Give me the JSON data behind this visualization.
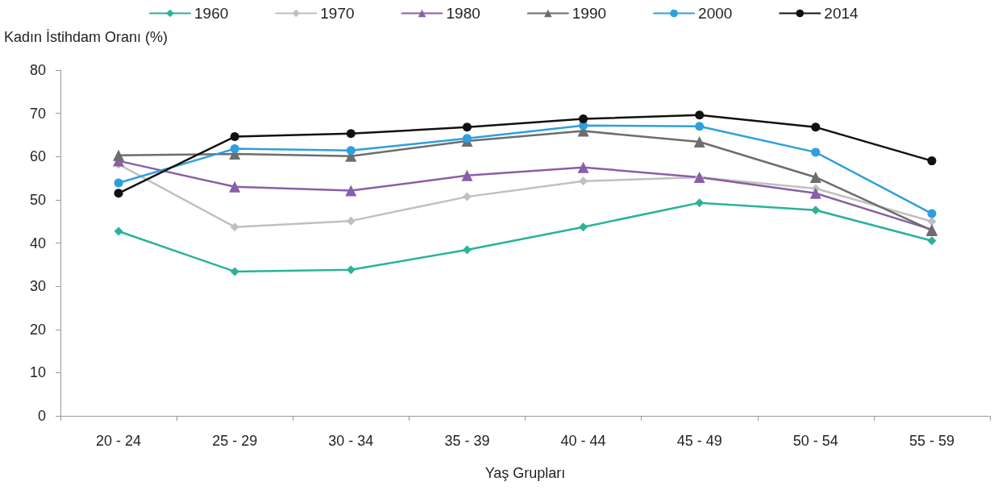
{
  "chart_data": {
    "type": "line",
    "ylabel": "Kadın İstihdam Oranı (%)",
    "xlabel": "Yaş Grupları",
    "categories": [
      "20 - 24",
      "25 - 29",
      "30 - 34",
      "35 - 39",
      "40 - 44",
      "45 - 49",
      "50 - 54",
      "55 - 59"
    ],
    "ylim": [
      0,
      80
    ],
    "yticks": [
      0,
      10,
      20,
      30,
      40,
      50,
      60,
      70,
      80
    ],
    "grid": false,
    "legend": "top",
    "series": [
      {
        "name": "1960",
        "color": "#2ab29a",
        "marker": "diamond",
        "values": [
          42.7,
          33.4,
          33.8,
          38.4,
          43.7,
          49.3,
          47.6,
          40.5
        ]
      },
      {
        "name": "1970",
        "color": "#c0c0c0",
        "marker": "diamond",
        "values": [
          58.2,
          43.7,
          45.1,
          50.7,
          54.3,
          55.2,
          52.6,
          45.0
        ]
      },
      {
        "name": "1980",
        "color": "#8a5ea8",
        "marker": "triangle",
        "values": [
          59.0,
          53.0,
          52.1,
          55.6,
          57.5,
          55.2,
          51.5,
          43.1
        ]
      },
      {
        "name": "1990",
        "color": "#6d6d6d",
        "marker": "triangle",
        "values": [
          60.3,
          60.6,
          60.1,
          63.6,
          65.9,
          63.4,
          55.2,
          42.9
        ]
      },
      {
        "name": "2000",
        "color": "#2e9fdc",
        "marker": "circle",
        "values": [
          53.9,
          61.8,
          61.4,
          64.2,
          67.2,
          67.0,
          61.0,
          46.8
        ]
      },
      {
        "name": "2014",
        "color": "#111111",
        "marker": "circle",
        "values": [
          51.5,
          64.6,
          65.3,
          66.8,
          68.7,
          69.6,
          66.8,
          59.0
        ]
      }
    ]
  }
}
